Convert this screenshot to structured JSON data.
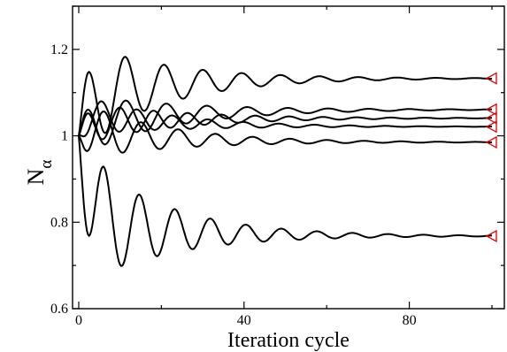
{
  "chart_data": {
    "type": "line",
    "title": "",
    "xlabel": "Iteration cycle",
    "ylabel_main": "N",
    "ylabel_sub": "α",
    "xlim": [
      -1.5,
      103
    ],
    "ylim": [
      0.6,
      1.3
    ],
    "x_ticks": [
      0,
      40,
      80
    ],
    "x_tick_labels": [
      "0",
      "40",
      "80"
    ],
    "y_ticks": [
      0.6,
      0.8,
      1,
      1.2
    ],
    "y_tick_labels": [
      "0.6",
      "0.8",
      "1",
      "1.2"
    ],
    "grid": false,
    "legend": "none",
    "line_color": "#000000",
    "marker_color": "#e00000",
    "marker_shape": "left-pointing triangle",
    "marker_x": 100,
    "series": [
      {
        "start": 1.0,
        "final": 1.133,
        "amp": 0.128,
        "period": 9.4,
        "phase": 0.31,
        "decay": 0.05,
        "sign": 1
      },
      {
        "start": 1.0,
        "final": 1.061,
        "amp": 0.07,
        "period": 9.8,
        "phase": 0.52,
        "decay": 0.045,
        "sign": 1
      },
      {
        "start": 1.0,
        "final": 1.041,
        "amp": 0.05,
        "period": 8.2,
        "phase": 0.22,
        "decay": 0.045,
        "sign": 1
      },
      {
        "start": 1.0,
        "final": 1.021,
        "amp": 0.05,
        "period": 8.6,
        "phase": 0.68,
        "decay": 0.05,
        "sign": -1
      },
      {
        "start": 1.0,
        "final": 0.985,
        "amp": 0.068,
        "period": 9.0,
        "phase": 0.42,
        "decay": 0.048,
        "sign": -1
      },
      {
        "start": 1.0,
        "final": 0.768,
        "amp": 0.16,
        "period": 8.6,
        "phase": 0.25,
        "decay": 0.05,
        "sign": -1
      }
    ]
  }
}
